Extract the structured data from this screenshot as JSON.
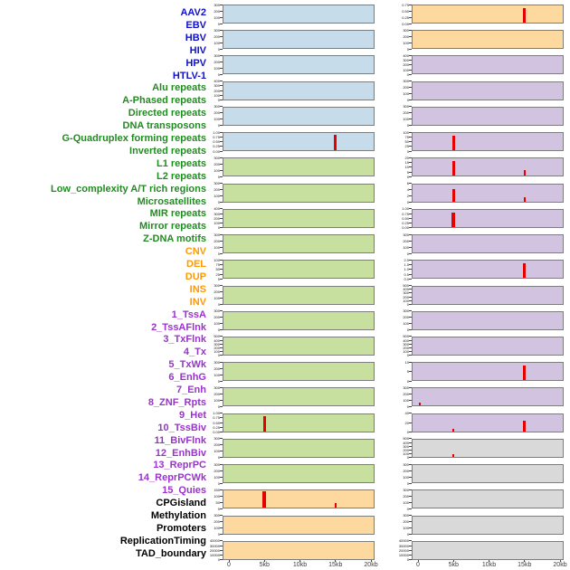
{
  "chart_data": {
    "type": "bar",
    "title": "",
    "description": "Grid of mini signal tracks (two columns of 22 panels) over a 0-20kb genomic window; red vertical bars mark peaks. Left list names 44 genomic features grouped by color.",
    "x_ticks": [
      "0",
      "5kb",
      "10kb",
      "15kb",
      "20kb"
    ],
    "x_range_kb": [
      0,
      20
    ],
    "label_colors": {
      "virus": "#1111cc",
      "repeat": "#228b22",
      "sv": "#ff9900",
      "chromatin": "#9933cc",
      "other": "#000000"
    },
    "panel_colors": {
      "blue": "#c6dcea",
      "green": "#c7e0a0",
      "orange": "#fdd9a0",
      "purple": "#d2c3e0",
      "gray": "#d9d9d9"
    },
    "spike_color": "#e60000",
    "row_labels": [
      {
        "text": "AAV2",
        "group": "virus"
      },
      {
        "text": "EBV",
        "group": "virus"
      },
      {
        "text": "HBV",
        "group": "virus"
      },
      {
        "text": "HIV",
        "group": "virus"
      },
      {
        "text": "HPV",
        "group": "virus"
      },
      {
        "text": "HTLV-1",
        "group": "virus"
      },
      {
        "text": "Alu repeats",
        "group": "repeat"
      },
      {
        "text": "A-Phased repeats",
        "group": "repeat"
      },
      {
        "text": "Directed repeats",
        "group": "repeat"
      },
      {
        "text": "DNA transposons",
        "group": "repeat"
      },
      {
        "text": "G-Quadruplex forming repeats",
        "group": "repeat"
      },
      {
        "text": "Inverted repeats",
        "group": "repeat"
      },
      {
        "text": "L1 repeats",
        "group": "repeat"
      },
      {
        "text": "L2 repeats",
        "group": "repeat"
      },
      {
        "text": "Low_complexity A/T rich regions",
        "group": "repeat"
      },
      {
        "text": "Microsatellites",
        "group": "repeat"
      },
      {
        "text": "MIR repeats",
        "group": "repeat"
      },
      {
        "text": "Mirror repeats",
        "group": "repeat"
      },
      {
        "text": "Z-DNA motifs",
        "group": "repeat"
      },
      {
        "text": "CNV",
        "group": "sv"
      },
      {
        "text": "DEL",
        "group": "sv"
      },
      {
        "text": "DUP",
        "group": "sv"
      },
      {
        "text": "INS",
        "group": "sv"
      },
      {
        "text": "INV",
        "group": "sv"
      },
      {
        "text": "1_TssA",
        "group": "chromatin"
      },
      {
        "text": "2_TssAFlnk",
        "group": "chromatin"
      },
      {
        "text": "3_TxFlnk",
        "group": "chromatin"
      },
      {
        "text": "4_Tx",
        "group": "chromatin"
      },
      {
        "text": "5_TxWk",
        "group": "chromatin"
      },
      {
        "text": "6_EnhG",
        "group": "chromatin"
      },
      {
        "text": "7_Enh",
        "group": "chromatin"
      },
      {
        "text": "8_ZNF_Rpts",
        "group": "chromatin"
      },
      {
        "text": "9_Het",
        "group": "chromatin"
      },
      {
        "text": "10_TssBiv",
        "group": "chromatin"
      },
      {
        "text": "11_BivFlnk",
        "group": "chromatin"
      },
      {
        "text": "12_EnhBiv",
        "group": "chromatin"
      },
      {
        "text": "13_ReprPC",
        "group": "chromatin"
      },
      {
        "text": "14_ReprPCWk",
        "group": "chromatin"
      },
      {
        "text": "15_Quies",
        "group": "chromatin"
      },
      {
        "text": "CPGisland",
        "group": "other"
      },
      {
        "text": "Methylation",
        "group": "other"
      },
      {
        "text": "Promoters",
        "group": "other"
      },
      {
        "text": "ReplicationTiming",
        "group": "other"
      },
      {
        "text": "TAD_boundary",
        "group": "other"
      }
    ],
    "columns": [
      {
        "name": "left",
        "panels": [
          {
            "fill": "blue",
            "yticks": [
              "300",
              "200",
              "100",
              "0"
            ],
            "spikes": []
          },
          {
            "fill": "blue",
            "yticks": [
              "300",
              "200",
              "100",
              "0"
            ],
            "spikes": []
          },
          {
            "fill": "blue",
            "yticks": [
              "300",
              "200",
              "100",
              "0"
            ],
            "spikes": []
          },
          {
            "fill": "blue",
            "yticks": [
              "400",
              "300",
              "200",
              "100",
              "0"
            ],
            "spikes": []
          },
          {
            "fill": "blue",
            "yticks": [
              "300",
              "200",
              "100",
              "0"
            ],
            "spikes": []
          },
          {
            "fill": "blue",
            "yticks": [
              "1.00",
              "0.75",
              "0.50",
              "0.25",
              "0.00"
            ],
            "spikes": [
              {
                "x_kb": 15,
                "height_frac": 0.88,
                "w": 3
              }
            ]
          },
          {
            "fill": "green",
            "yticks": [
              "300",
              "200",
              "100",
              "0"
            ],
            "spikes": []
          },
          {
            "fill": "green",
            "yticks": [
              "300",
              "200",
              "100",
              "0"
            ],
            "spikes": []
          },
          {
            "fill": "green",
            "yticks": [
              "400",
              "300",
              "200",
              "100",
              "0"
            ],
            "spikes": []
          },
          {
            "fill": "green",
            "yticks": [
              "300",
              "200",
              "100",
              "0"
            ],
            "spikes": []
          },
          {
            "fill": "green",
            "yticks": [
              "100",
              "75",
              "50",
              "25",
              "0"
            ],
            "spikes": []
          },
          {
            "fill": "green",
            "yticks": [
              "300",
              "200",
              "100",
              "0"
            ],
            "spikes": []
          },
          {
            "fill": "green",
            "yticks": [
              "300",
              "200",
              "100",
              "0"
            ],
            "spikes": []
          },
          {
            "fill": "green",
            "yticks": [
              "500",
              "400",
              "300",
              "200",
              "100",
              "0"
            ],
            "spikes": []
          },
          {
            "fill": "green",
            "yticks": [
              "300",
              "200",
              "100",
              "0"
            ],
            "spikes": []
          },
          {
            "fill": "green",
            "yticks": [
              "300",
              "200",
              "100",
              "0"
            ],
            "spikes": []
          },
          {
            "fill": "green",
            "yticks": [
              "1.00",
              "0.75",
              "0.50",
              "0.25",
              "0.00"
            ],
            "spikes": [
              {
                "x_kb": 5,
                "height_frac": 0.9,
                "w": 3
              }
            ]
          },
          {
            "fill": "green",
            "yticks": [
              "300",
              "200",
              "100",
              "0"
            ],
            "spikes": []
          },
          {
            "fill": "green",
            "yticks": [
              "300",
              "200",
              "100",
              "0"
            ],
            "spikes": []
          },
          {
            "fill": "orange",
            "yticks": [
              "150",
              "100",
              "50",
              "0"
            ],
            "spikes": [
              {
                "x_kb": 5,
                "height_frac": 0.95,
                "w": 4
              },
              {
                "x_kb": 15,
                "height_frac": 0.3,
                "w": 2
              }
            ]
          },
          {
            "fill": "orange",
            "yticks": [
              "300",
              "200",
              "100",
              "0"
            ],
            "spikes": []
          },
          {
            "fill": "orange",
            "yticks": [
              "40000",
              "30000",
              "20000",
              "10000",
              "0"
            ],
            "spikes": []
          }
        ]
      },
      {
        "name": "right",
        "panels": [
          {
            "fill": "orange",
            "yticks": [
              "0.75",
              "0.50",
              "0.25",
              "0.00"
            ],
            "spikes": [
              {
                "x_kb": 15,
                "height_frac": 0.85,
                "w": 3
              }
            ]
          },
          {
            "fill": "orange",
            "yticks": [
              "300",
              "200",
              "100",
              "0"
            ],
            "spikes": []
          },
          {
            "fill": "purple",
            "yticks": [
              "400",
              "300",
              "200",
              "100",
              "0"
            ],
            "spikes": []
          },
          {
            "fill": "purple",
            "yticks": [
              "300",
              "200",
              "100",
              "0"
            ],
            "spikes": []
          },
          {
            "fill": "purple",
            "yticks": [
              "300",
              "200",
              "100",
              "0"
            ],
            "spikes": []
          },
          {
            "fill": "purple",
            "yticks": [
              "100",
              "75",
              "50",
              "25",
              "0"
            ],
            "spikes": [
              {
                "x_kb": 5,
                "height_frac": 0.85,
                "w": 3
              }
            ]
          },
          {
            "fill": "purple",
            "yticks": [
              "20",
              "15",
              "10",
              "5",
              "0"
            ],
            "spikes": [
              {
                "x_kb": 5,
                "height_frac": 0.85,
                "w": 3
              },
              {
                "x_kb": 15,
                "height_frac": 0.35,
                "w": 2
              }
            ]
          },
          {
            "fill": "purple",
            "yticks": [
              "6",
              "4",
              "2",
              "0"
            ],
            "spikes": [
              {
                "x_kb": 5,
                "height_frac": 0.7,
                "w": 3
              },
              {
                "x_kb": 15,
                "height_frac": 0.25,
                "w": 2
              }
            ]
          },
          {
            "fill": "purple",
            "yticks": [
              "1.00",
              "0.75",
              "0.50",
              "0.25",
              "0.00"
            ],
            "spikes": [
              {
                "x_kb": 5,
                "height_frac": 0.85,
                "w": 4
              }
            ]
          },
          {
            "fill": "purple",
            "yticks": [
              "300",
              "200",
              "100",
              "0"
            ],
            "spikes": []
          },
          {
            "fill": "purple",
            "yticks": [
              "2.0",
              "1.5",
              "1.0",
              "0.5",
              "0.0"
            ],
            "spikes": [
              {
                "x_kb": 15,
                "height_frac": 0.85,
                "w": 3
              }
            ]
          },
          {
            "fill": "purple",
            "yticks": [
              "500",
              "400",
              "300",
              "200",
              "100",
              "0"
            ],
            "spikes": []
          },
          {
            "fill": "purple",
            "yticks": [
              "300",
              "200",
              "100",
              "0"
            ],
            "spikes": []
          },
          {
            "fill": "purple",
            "yticks": [
              "500",
              "400",
              "300",
              "200",
              "100",
              "0"
            ],
            "spikes": []
          },
          {
            "fill": "purple",
            "yticks": [
              "10",
              "5",
              "0"
            ],
            "spikes": [
              {
                "x_kb": 15,
                "height_frac": 0.85,
                "w": 3
              }
            ]
          },
          {
            "fill": "purple",
            "yticks": [
              "300",
              "200",
              "100",
              "0"
            ],
            "spikes": [
              {
                "x_kb": 0.3,
                "height_frac": 0.2,
                "w": 2
              }
            ]
          },
          {
            "fill": "purple",
            "yticks": [
              "40",
              "20",
              "0"
            ],
            "spikes": [
              {
                "x_kb": 15,
                "height_frac": 0.6,
                "w": 3
              },
              {
                "x_kb": 5,
                "height_frac": 0.12,
                "w": 2
              }
            ]
          },
          {
            "fill": "gray",
            "yticks": [
              "500",
              "400",
              "300",
              "200",
              "100",
              "0"
            ],
            "spikes": [
              {
                "x_kb": 5,
                "height_frac": 0.15,
                "w": 2
              }
            ]
          },
          {
            "fill": "gray",
            "yticks": [
              "300",
              "200",
              "100",
              "0"
            ],
            "spikes": []
          },
          {
            "fill": "gray",
            "yticks": [
              "300",
              "200",
              "100",
              "0"
            ],
            "spikes": []
          },
          {
            "fill": "gray",
            "yticks": [
              "300",
              "200",
              "100",
              "0"
            ],
            "spikes": []
          },
          {
            "fill": "gray",
            "yticks": [
              "40000",
              "30000",
              "20000",
              "10000",
              "0"
            ],
            "spikes": []
          }
        ]
      }
    ]
  }
}
